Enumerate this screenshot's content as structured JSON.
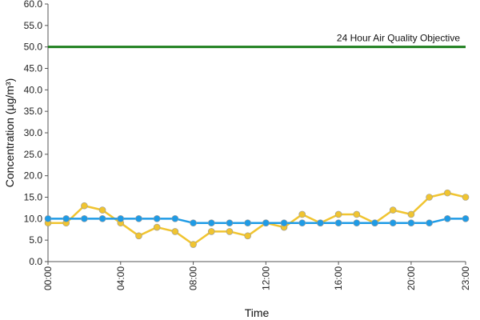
{
  "chart_data": {
    "type": "line",
    "xlabel": "Time",
    "ylabel": "Concentration (µg/m³)",
    "ylim": [
      0,
      60
    ],
    "y_ticks": [
      "0.0",
      "5.0",
      "10.0",
      "15.0",
      "20.0",
      "25.0",
      "30.0",
      "35.0",
      "40.0",
      "45.0",
      "50.0",
      "55.0",
      "60.0"
    ],
    "x_ticks": [
      "00:00",
      "04:00",
      "08:00",
      "12:00",
      "16:00",
      "20:00",
      "23:00"
    ],
    "x": [
      "00:00",
      "01:00",
      "02:00",
      "03:00",
      "04:00",
      "05:00",
      "06:00",
      "07:00",
      "08:00",
      "09:00",
      "10:00",
      "11:00",
      "12:00",
      "13:00",
      "14:00",
      "15:00",
      "16:00",
      "17:00",
      "18:00",
      "19:00",
      "20:00",
      "21:00",
      "22:00",
      "23:00"
    ],
    "grid": false,
    "series": [
      {
        "color": "#F0C430",
        "marker": "circle",
        "values": [
          9,
          9,
          13,
          12,
          9,
          6,
          8,
          7,
          4,
          7,
          7,
          6,
          9,
          8,
          11,
          9,
          11,
          11,
          9,
          12,
          11,
          15,
          16,
          15
        ]
      },
      {
        "color": "#1E9BE6",
        "marker": "circle",
        "values": [
          10,
          10,
          10,
          10,
          10,
          10,
          10,
          10,
          9,
          9,
          9,
          9,
          9,
          9,
          9,
          9,
          9,
          9,
          9,
          9,
          9,
          9,
          10,
          10
        ]
      }
    ],
    "reference_line": {
      "label": "24 Hour Air Quality Objective",
      "value": 50,
      "color": "#1E7F1E"
    }
  }
}
